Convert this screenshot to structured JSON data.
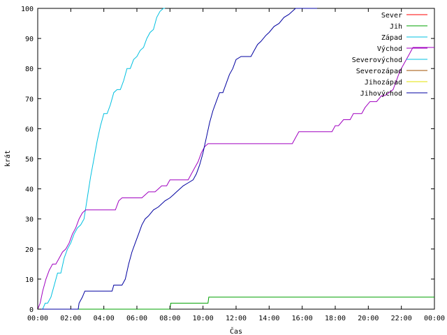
{
  "chart_data": {
    "type": "line",
    "xlabel": "Čas",
    "ylabel": "krát",
    "xlim": [
      0,
      24
    ],
    "ylim": [
      0,
      100
    ],
    "x_ticks": [
      0,
      2,
      4,
      6,
      8,
      10,
      12,
      14,
      16,
      18,
      20,
      22,
      24
    ],
    "x_tick_labels": [
      "00:00",
      "02:00",
      "04:00",
      "06:00",
      "08:00",
      "10:00",
      "12:00",
      "14:00",
      "16:00",
      "18:00",
      "20:00",
      "22:00",
      "00:00"
    ],
    "y_ticks": [
      0,
      10,
      20,
      30,
      40,
      50,
      60,
      70,
      80,
      90,
      100
    ],
    "y_tick_labels": [
      "0",
      "10",
      "20",
      "30",
      "40",
      "50",
      "60",
      "70",
      "80",
      "90",
      "100"
    ],
    "grid": false,
    "legend_position": "top-right",
    "series": [
      {
        "name": "Sever",
        "color": "#ff0000",
        "x": [],
        "y": []
      },
      {
        "name": "Jih",
        "color": "#00a000",
        "x": [
          0,
          8.0,
          8.05,
          10.3,
          10.35,
          24
        ],
        "y": [
          0,
          0,
          2,
          2,
          4,
          4
        ]
      },
      {
        "name": "Západ",
        "color": "#00c0e0",
        "x": [
          0,
          0.3,
          0.45,
          0.6,
          0.8,
          1.0,
          1.2,
          1.4,
          1.6,
          1.8,
          2.0,
          2.2,
          2.4,
          2.6,
          2.8,
          3.0,
          3.2,
          3.4,
          3.6,
          3.8,
          4.0,
          4.2,
          4.4,
          4.6,
          4.8,
          5.0,
          5.2,
          5.4,
          5.6,
          5.8,
          6.0,
          6.2,
          6.4,
          6.6,
          6.8,
          7.0,
          7.2,
          7.4,
          7.6,
          7.7
        ],
        "y": [
          0,
          0,
          2,
          2,
          4,
          8,
          12,
          12,
          17,
          20,
          22,
          25,
          27,
          28,
          30,
          37,
          44,
          50,
          56,
          61,
          65,
          65,
          68,
          72,
          73,
          73,
          76,
          80,
          80,
          83,
          84,
          86,
          87,
          90,
          92,
          93,
          97,
          99,
          100,
          100
        ]
      },
      {
        "name": "Východ",
        "color": "#a000c0",
        "x": [
          0,
          0.15,
          0.3,
          0.5,
          0.7,
          0.9,
          1.1,
          1.3,
          1.5,
          1.7,
          1.9,
          2.1,
          2.3,
          2.5,
          2.7,
          2.9,
          3.1,
          3.3,
          4.7,
          4.9,
          5.1,
          6.3,
          6.5,
          6.7,
          7.1,
          7.3,
          7.5,
          7.8,
          8.0,
          9.1,
          9.3,
          9.5,
          9.7,
          9.9,
          10.1,
          10.3,
          11.5,
          12.0,
          13.0,
          15.4,
          15.6,
          15.8,
          16.0,
          17.8,
          18.0,
          18.2,
          18.5,
          18.9,
          19.1,
          19.6,
          19.8,
          20.1,
          20.5,
          20.8,
          21.0,
          21.5,
          21.7,
          21.9,
          22.1,
          22.3,
          22.5,
          22.7,
          24
        ],
        "y": [
          0,
          2,
          6,
          10,
          13,
          15,
          15,
          17,
          19,
          20,
          22,
          25,
          27,
          30,
          32,
          33,
          33,
          33,
          33,
          36,
          37,
          37,
          38,
          39,
          39,
          40,
          41,
          41,
          43,
          43,
          45,
          47,
          49,
          52,
          54,
          55,
          55,
          55,
          55,
          55,
          57,
          59,
          59,
          59,
          61,
          61,
          63,
          63,
          65,
          65,
          67,
          69,
          69,
          71,
          71,
          73,
          76,
          79,
          81,
          83,
          85,
          87,
          87
        ]
      },
      {
        "name": "Severovýchod",
        "color": "#00c0e0",
        "x": [],
        "y": []
      },
      {
        "name": "Severozápad",
        "color": "#a05000",
        "x": [],
        "y": []
      },
      {
        "name": "Jihozápad",
        "color": "#e0e000",
        "x": [],
        "y": []
      },
      {
        "name": "Jihovýchod",
        "color": "#0000a0",
        "x": [
          0,
          2.45,
          2.5,
          2.7,
          2.85,
          3.0,
          4.5,
          4.6,
          5.1,
          5.3,
          5.5,
          5.7,
          5.9,
          6.1,
          6.3,
          6.5,
          6.7,
          7.0,
          7.3,
          7.7,
          8.0,
          8.2,
          8.4,
          8.6,
          8.8,
          9.1,
          9.4,
          9.6,
          9.8,
          10.0,
          10.2,
          10.4,
          10.6,
          10.8,
          11.0,
          11.2,
          11.4,
          11.6,
          11.8,
          12.0,
          12.3,
          12.6,
          12.9,
          13.1,
          13.3,
          13.5,
          13.8,
          14.0,
          14.3,
          14.6,
          14.9,
          15.2,
          15.4,
          15.6,
          15.8,
          16.0,
          16.2,
          16.4,
          16.7,
          16.9
        ],
        "y": [
          0,
          0,
          2,
          4,
          6,
          6,
          6,
          8,
          8,
          10,
          15,
          19,
          22,
          25,
          28,
          30,
          31,
          33,
          34,
          36,
          37,
          38,
          39,
          40,
          41,
          42,
          43,
          45,
          48,
          52,
          57,
          62,
          66,
          69,
          72,
          72,
          75,
          78,
          80,
          83,
          84,
          84,
          84,
          86,
          88,
          89,
          91,
          92,
          94,
          95,
          97,
          98,
          99,
          100,
          100,
          100,
          100,
          100,
          100,
          100
        ]
      }
    ]
  }
}
